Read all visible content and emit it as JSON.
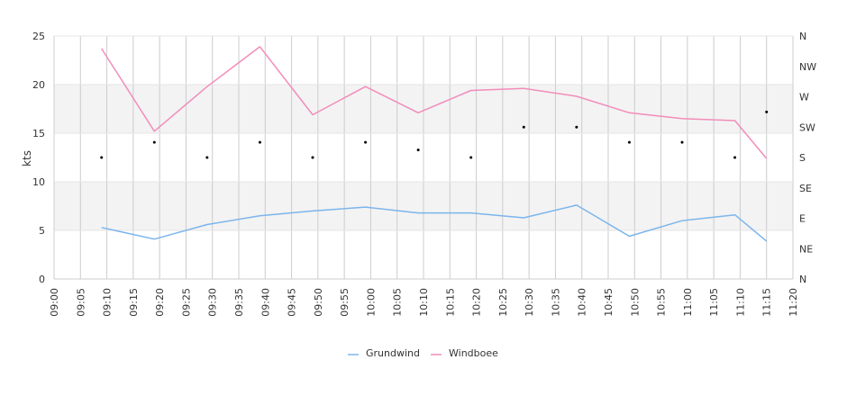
{
  "chart_data": {
    "type": "line",
    "title": "",
    "xlabel": "",
    "ylabel": "kts",
    "ylim": [
      0,
      25
    ],
    "y_ticks": [
      "0",
      "5",
      "10",
      "15",
      "20",
      "25"
    ],
    "x_ticks": [
      "09:00",
      "09:05",
      "09:10",
      "09:15",
      "09:20",
      "09:25",
      "09:30",
      "09:35",
      "09:40",
      "09:45",
      "09:50",
      "09:55",
      "10:00",
      "10:05",
      "10:10",
      "10:15",
      "10:20",
      "10:25",
      "10:30",
      "10:35",
      "10:40",
      "10:45",
      "10:50",
      "10:55",
      "11:00",
      "11:05",
      "11:10",
      "11:15",
      "11:20"
    ],
    "direction_axis": {
      "labels": [
        "N",
        "NE",
        "E",
        "SE",
        "S",
        "SW",
        "W",
        "NW",
        "N"
      ]
    },
    "x": [
      "09:09",
      "09:19",
      "09:29",
      "09:39",
      "09:49",
      "09:59",
      "10:09",
      "10:19",
      "10:29",
      "10:39",
      "10:49",
      "10:59",
      "11:09",
      "11:15"
    ],
    "series": [
      {
        "name": "Grundwind",
        "color": "#7cb5ec",
        "values": [
          5.3,
          4.1,
          5.6,
          6.5,
          7.0,
          7.4,
          6.8,
          6.8,
          6.3,
          7.6,
          4.4,
          6.0,
          6.6,
          3.9
        ]
      },
      {
        "name": "Windboee",
        "color": "#f28cbb",
        "values": [
          23.7,
          15.2,
          19.8,
          23.9,
          16.9,
          19.8,
          17.1,
          19.4,
          19.6,
          18.8,
          17.1,
          16.5,
          16.3,
          12.4
        ]
      }
    ],
    "direction_points": [
      {
        "x": "09:09",
        "dir": "S"
      },
      {
        "x": "09:19",
        "dir": "SSW"
      },
      {
        "x": "09:29",
        "dir": "S"
      },
      {
        "x": "09:39",
        "dir": "SSW"
      },
      {
        "x": "09:49",
        "dir": "S"
      },
      {
        "x": "09:59",
        "dir": "SSW"
      },
      {
        "x": "10:09",
        "dir": "S/SSW"
      },
      {
        "x": "10:19",
        "dir": "S"
      },
      {
        "x": "10:29",
        "dir": "SW"
      },
      {
        "x": "10:39",
        "dir": "SW"
      },
      {
        "x": "10:49",
        "dir": "SSW"
      },
      {
        "x": "10:59",
        "dir": "SSW"
      },
      {
        "x": "11:09",
        "dir": "S"
      },
      {
        "x": "11:15",
        "dir": "WSW"
      }
    ],
    "bands": [
      [
        5,
        10
      ],
      [
        15,
        20
      ]
    ],
    "grid": true,
    "legend": "bottom-center"
  }
}
